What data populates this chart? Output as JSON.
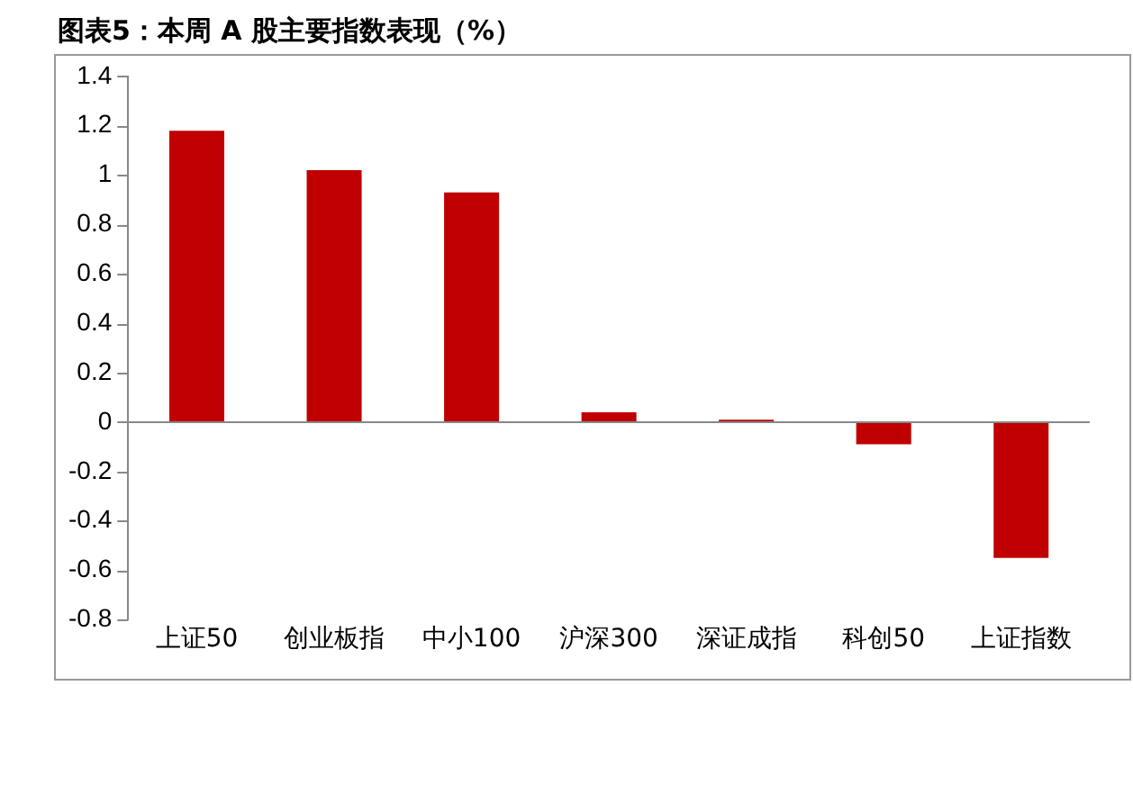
{
  "chart_data": {
    "type": "bar",
    "title": "图表5：本周 A 股主要指数表现（%）",
    "categories": [
      "上证50",
      "创业板指",
      "中小100",
      "沪深300",
      "深证成指",
      "科创50",
      "上证指数"
    ],
    "values": [
      1.18,
      1.02,
      0.93,
      0.04,
      0.01,
      -0.09,
      -0.55
    ],
    "color": "#c00000",
    "ylim": [
      -0.8,
      1.4
    ],
    "yticks": [
      -0.8,
      -0.6,
      -0.4,
      -0.2,
      0,
      0.2,
      0.4,
      0.6,
      0.8,
      1,
      1.2,
      1.4
    ],
    "ref_lines": [
      {
        "axis": "y",
        "value": 0,
        "color": "#888888"
      }
    ],
    "grid": false,
    "legend": false
  }
}
